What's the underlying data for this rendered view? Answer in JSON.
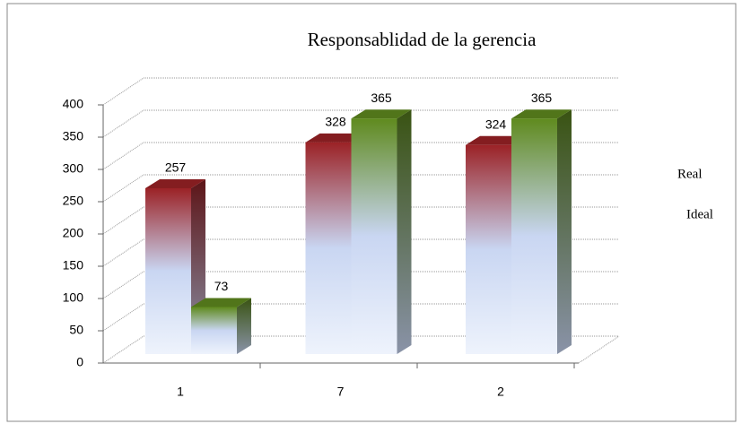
{
  "chart_data": {
    "type": "bar3d",
    "title": "Responsablidad de la gerencia",
    "categories": [
      "1",
      "7",
      "2"
    ],
    "series": [
      {
        "name": "Real",
        "color": "#9b2226",
        "values": [
          257,
          328,
          324
        ]
      },
      {
        "name": "Ideal",
        "color": "#5f8a1e",
        "values": [
          73,
          365,
          365
        ]
      }
    ],
    "ylim": [
      0,
      400
    ],
    "yticks": [
      0,
      50,
      100,
      150,
      200,
      250,
      300,
      350,
      400
    ],
    "grid": true
  }
}
